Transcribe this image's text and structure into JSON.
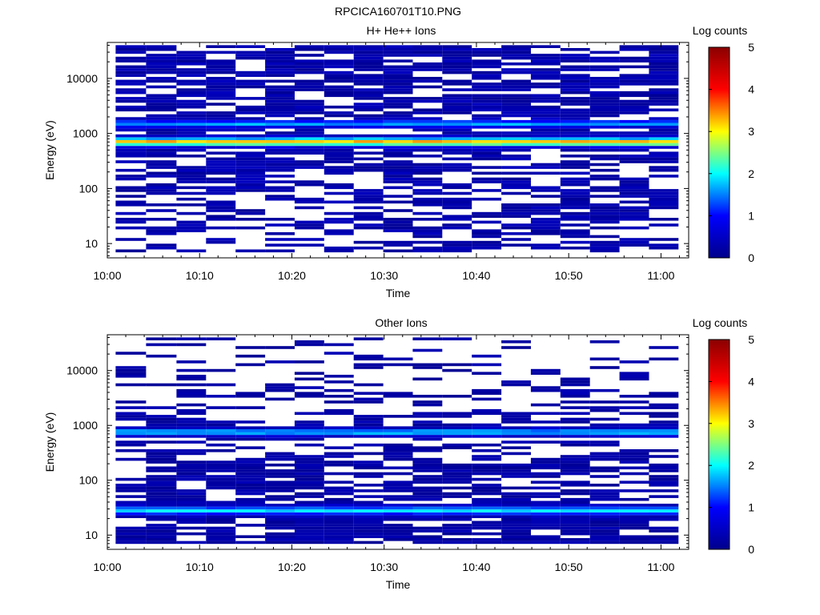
{
  "figure": {
    "title": "RPCICA160701T10.PNG"
  },
  "colors": {
    "colormap": [
      "#00008b",
      "#0000ff",
      "#00ffff",
      "#ffff00",
      "#ff0000",
      "#8b0000"
    ]
  },
  "chart_data": [
    {
      "type": "heatmap",
      "title": "H+ He++ Ions",
      "xlabel": "Time",
      "ylabel": "Energy (eV)",
      "x_ticks": [
        "10:00",
        "10:10",
        "10:20",
        "10:30",
        "10:40",
        "10:50",
        "11:00"
      ],
      "y_ticks": [
        "10",
        "100",
        "1000",
        "10000"
      ],
      "y_scale": "log",
      "ylim": [
        5.5,
        45000
      ],
      "xlim_minutes": [
        0,
        63
      ],
      "colorbar": {
        "label": "Log counts",
        "ticks": [
          "0",
          "1",
          "2",
          "3",
          "4",
          "5"
        ],
        "range": [
          0,
          5
        ]
      },
      "time_bins_minutes": [
        [
          0.9,
          4.2
        ],
        [
          4.2,
          7.5
        ],
        [
          7.5,
          10.7
        ],
        [
          10.7,
          13.9
        ],
        [
          13.9,
          17.1
        ],
        [
          17.1,
          20.3
        ],
        [
          20.3,
          23.5
        ],
        [
          23.5,
          26.7
        ],
        [
          26.7,
          29.9
        ],
        [
          29.9,
          33.1
        ],
        [
          33.1,
          36.3
        ],
        [
          36.3,
          39.5
        ],
        [
          39.5,
          42.7
        ],
        [
          42.7,
          45.9
        ],
        [
          45.9,
          49.1
        ],
        [
          49.1,
          52.3
        ],
        [
          52.3,
          55.5
        ],
        [
          55.5,
          58.7
        ],
        [
          58.7,
          61.9
        ]
      ],
      "energy_profile": {
        "primary_peak_ev": 700,
        "primary_peak_level": 3.0,
        "secondary_peak_ev": 1500,
        "secondary_peak_level": 1.4,
        "background_level": 0.3,
        "fill_fraction_high_energy": 0.8,
        "fill_fraction_low_energy": 0.45
      }
    },
    {
      "type": "heatmap",
      "title": "Other Ions",
      "xlabel": "Time",
      "ylabel": "Energy (eV)",
      "x_ticks": [
        "10:00",
        "10:10",
        "10:20",
        "10:30",
        "10:40",
        "10:50",
        "11:00"
      ],
      "y_ticks": [
        "10",
        "100",
        "1000",
        "10000"
      ],
      "y_scale": "log",
      "ylim": [
        5.5,
        45000
      ],
      "xlim_minutes": [
        0,
        63
      ],
      "colorbar": {
        "label": "Log counts",
        "ticks": [
          "0",
          "1",
          "2",
          "3",
          "4",
          "5"
        ],
        "range": [
          0,
          5
        ]
      },
      "time_bins_minutes": [
        [
          0.9,
          4.2
        ],
        [
          4.2,
          7.5
        ],
        [
          7.5,
          10.7
        ],
        [
          10.7,
          13.9
        ],
        [
          13.9,
          17.1
        ],
        [
          17.1,
          20.3
        ],
        [
          20.3,
          23.5
        ],
        [
          23.5,
          26.7
        ],
        [
          26.7,
          29.9
        ],
        [
          29.9,
          33.1
        ],
        [
          33.1,
          36.3
        ],
        [
          36.3,
          39.5
        ],
        [
          39.5,
          42.7
        ],
        [
          42.7,
          45.9
        ],
        [
          45.9,
          49.1
        ],
        [
          49.1,
          52.3
        ],
        [
          52.3,
          55.5
        ],
        [
          55.5,
          58.7
        ],
        [
          58.7,
          61.9
        ]
      ],
      "energy_profile": {
        "primary_peak_ev": 28,
        "primary_peak_level": 1.7,
        "secondary_peak_ev": 750,
        "secondary_peak_level": 1.6,
        "background_level": 0.25,
        "fill_fraction_high_energy": 0.12,
        "fill_fraction_low_energy": 0.9
      }
    }
  ]
}
